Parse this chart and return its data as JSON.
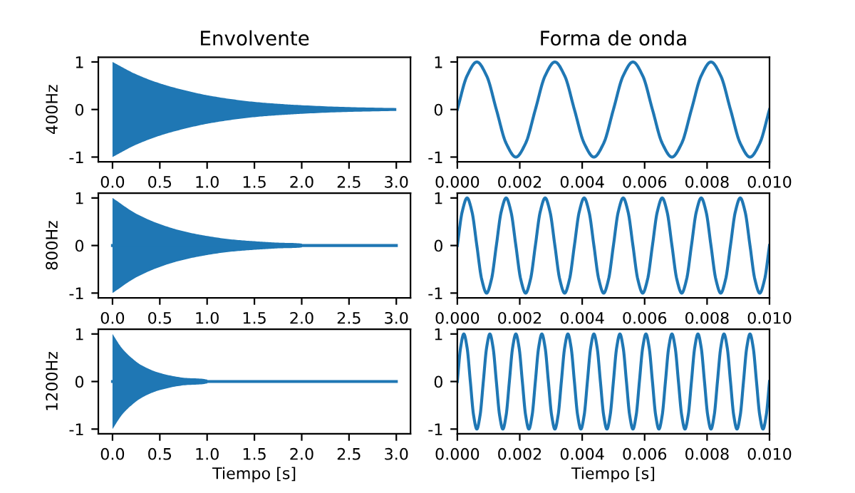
{
  "chart_data": [
    {
      "type": "line",
      "title": "Envolvente",
      "ylabel": "400Hz",
      "xlim": [
        -0.15,
        3.15
      ],
      "ylim": [
        -1.1,
        1.1
      ],
      "xticks": [
        {
          "value": 0,
          "label": "0.0"
        },
        {
          "value": 0.5,
          "label": "0.5"
        },
        {
          "value": 1,
          "label": "1.0"
        },
        {
          "value": 1.5,
          "label": "1.5"
        },
        {
          "value": 2,
          "label": "2.0"
        },
        {
          "value": 2.5,
          "label": "2.5"
        },
        {
          "value": 3,
          "label": "3.0"
        }
      ],
      "yticks": [
        -1,
        0,
        1
      ],
      "x": [
        0,
        0.25,
        0.5,
        0.75,
        1,
        1.25,
        1.5,
        1.75,
        2,
        2.5,
        3
      ],
      "series": [
        {
          "color": "#1f77b4",
          "values": [
            null,
            null,
            null,
            null,
            null,
            null,
            null,
            null,
            null,
            null,
            null
          ],
          "upper": [
            1,
            0.74,
            0.55,
            0.41,
            0.3,
            0.22,
            0.16,
            0.12,
            0.09,
            0.05,
            0.03
          ],
          "lower": [
            -1,
            -0.74,
            -0.55,
            -0.41,
            -0.3,
            -0.22,
            -0.16,
            -0.12,
            -0.09,
            -0.05,
            -0.03
          ]
        }
      ]
    },
    {
      "type": "line",
      "title": "Forma de onda",
      "xlim": [
        0,
        0.01
      ],
      "ylim": [
        -1.1,
        1.1
      ],
      "xticks": [
        {
          "value": 0,
          "label": "0.000"
        },
        {
          "value": 0.002,
          "label": "0.002"
        },
        {
          "value": 0.004,
          "label": "0.004"
        },
        {
          "value": 0.006,
          "label": "0.006"
        },
        {
          "value": 0.008,
          "label": "0.008"
        },
        {
          "value": 0.01,
          "label": "0.010"
        }
      ],
      "yticks": [
        -1,
        0,
        1
      ],
      "x": [
        0,
        0.000313,
        0.000625,
        0.000938,
        0.00125,
        0.001563,
        0.001875,
        0.002188,
        0.0025,
        0.002813,
        0.003125,
        0.003438,
        0.00375,
        0.004063,
        0.004375,
        0.004688,
        0.005,
        0.005313,
        0.005625,
        0.005938,
        0.00625,
        0.006563,
        0.006875,
        0.007188,
        0.0075,
        0.007813,
        0.008125,
        0.008438,
        0.00875,
        0.009063,
        0.009375,
        0.009688,
        0.01
      ],
      "series": [
        {
          "color": "#1f77b4",
          "values": [
            0,
            0.71,
            1,
            0.71,
            0,
            -0.71,
            -1,
            -0.71,
            0,
            0.71,
            1,
            0.71,
            0,
            -0.71,
            -1,
            -0.71,
            0,
            0.71,
            1,
            0.71,
            0,
            -0.71,
            -1,
            -0.71,
            0,
            0.71,
            1,
            0.71,
            0,
            -0.71,
            -1,
            -0.71,
            0
          ]
        }
      ]
    },
    {
      "type": "line",
      "ylabel": "800Hz",
      "xlim": [
        -0.15,
        3.15
      ],
      "ylim": [
        -1.1,
        1.1
      ],
      "xticks": [
        {
          "value": 0,
          "label": "0.0"
        },
        {
          "value": 0.5,
          "label": "0.5"
        },
        {
          "value": 1,
          "label": "1.0"
        },
        {
          "value": 1.5,
          "label": "1.5"
        },
        {
          "value": 2,
          "label": "2.0"
        },
        {
          "value": 2.5,
          "label": "2.5"
        },
        {
          "value": 3,
          "label": "3.0"
        }
      ],
      "yticks": [
        -1,
        0,
        1
      ],
      "x": [
        0,
        0.25,
        0.5,
        0.75,
        1,
        1.25,
        1.5,
        1.75,
        2,
        2.01,
        3
      ],
      "series": [
        {
          "color": "#1f77b4",
          "values": [
            0,
            0,
            0,
            0,
            0,
            0,
            0,
            0,
            0,
            0,
            0
          ],
          "upper": [
            1,
            0.67,
            0.45,
            0.3,
            0.2,
            0.13,
            0.09,
            0.06,
            0.04,
            0,
            0
          ],
          "lower": [
            -1,
            -0.67,
            -0.45,
            -0.3,
            -0.2,
            -0.13,
            -0.09,
            -0.06,
            -0.04,
            0,
            0
          ]
        }
      ]
    },
    {
      "type": "line",
      "xlim": [
        0,
        0.01
      ],
      "ylim": [
        -1.1,
        1.1
      ],
      "xticks": [
        {
          "value": 0,
          "label": "0.000"
        },
        {
          "value": 0.002,
          "label": "0.002"
        },
        {
          "value": 0.004,
          "label": "0.004"
        },
        {
          "value": 0.006,
          "label": "0.006"
        },
        {
          "value": 0.008,
          "label": "0.008"
        },
        {
          "value": 0.01,
          "label": "0.010"
        }
      ],
      "yticks": [
        -1,
        0,
        1
      ],
      "x": [
        0,
        0.000156,
        0.000313,
        0.000469,
        0.000625,
        0.000781,
        0.000938,
        0.001094,
        0.00125,
        0.001406,
        0.001563,
        0.001719,
        0.001875,
        0.002031,
        0.002188,
        0.002344,
        0.0025,
        0.002656,
        0.002813,
        0.002969,
        0.003125,
        0.003281,
        0.003438,
        0.003594,
        0.00375,
        0.003906,
        0.004063,
        0.004219,
        0.004375,
        0.004531,
        0.004688,
        0.004844,
        0.005,
        0.005156,
        0.005313,
        0.005469,
        0.005625,
        0.005781,
        0.005938,
        0.006094,
        0.00625,
        0.006406,
        0.006563,
        0.006719,
        0.006875,
        0.007031,
        0.007188,
        0.007344,
        0.0075,
        0.007656,
        0.007813,
        0.007969,
        0.008125,
        0.008281,
        0.008438,
        0.008594,
        0.00875,
        0.008906,
        0.009063,
        0.009219,
        0.009375,
        0.009531,
        0.009688,
        0.009844,
        0.01
      ],
      "series": [
        {
          "color": "#1f77b4",
          "values": [
            0,
            0.71,
            1,
            0.71,
            0,
            -0.71,
            -1,
            -0.71,
            0,
            0.71,
            1,
            0.71,
            0,
            -0.71,
            -1,
            -0.71,
            0,
            0.71,
            1,
            0.71,
            0,
            -0.71,
            -1,
            -0.71,
            0,
            0.71,
            1,
            0.71,
            0,
            -0.71,
            -1,
            -0.71,
            0,
            0.71,
            1,
            0.71,
            0,
            -0.71,
            -1,
            -0.71,
            0,
            0.71,
            1,
            0.71,
            0,
            -0.71,
            -1,
            -0.71,
            0,
            0.71,
            1,
            0.71,
            0,
            -0.71,
            -1,
            -0.71,
            0,
            0.71,
            1,
            0.71,
            0,
            -0.71,
            -1,
            -0.71,
            0
          ]
        }
      ]
    },
    {
      "type": "line",
      "ylabel": "1200Hz",
      "xlabel": "Tiempo [s]",
      "xlim": [
        -0.15,
        3.15
      ],
      "ylim": [
        -1.1,
        1.1
      ],
      "xticks": [
        {
          "value": 0,
          "label": "0.0"
        },
        {
          "value": 0.5,
          "label": "0.5"
        },
        {
          "value": 1,
          "label": "1.0"
        },
        {
          "value": 1.5,
          "label": "1.5"
        },
        {
          "value": 2,
          "label": "2.0"
        },
        {
          "value": 2.5,
          "label": "2.5"
        },
        {
          "value": 3,
          "label": "3.0"
        }
      ],
      "yticks": [
        -1,
        0,
        1
      ],
      "x": [
        0,
        0.1,
        0.2,
        0.3,
        0.5,
        0.75,
        1,
        1.01,
        3
      ],
      "series": [
        {
          "color": "#1f77b4",
          "values": [
            0,
            0,
            0,
            0,
            0,
            0,
            0,
            0,
            0
          ],
          "upper": [
            1,
            0.7,
            0.5,
            0.35,
            0.18,
            0.08,
            0.04,
            0,
            0
          ],
          "lower": [
            -1,
            -0.7,
            -0.5,
            -0.35,
            -0.18,
            -0.08,
            -0.04,
            0,
            0
          ]
        }
      ]
    },
    {
      "type": "line",
      "xlabel": "Tiempo [s]",
      "xlim": [
        0,
        0.01
      ],
      "ylim": [
        -1.1,
        1.1
      ],
      "xticks": [
        {
          "value": 0,
          "label": "0.000"
        },
        {
          "value": 0.002,
          "label": "0.002"
        },
        {
          "value": 0.004,
          "label": "0.004"
        },
        {
          "value": 0.006,
          "label": "0.006"
        },
        {
          "value": 0.008,
          "label": "0.008"
        },
        {
          "value": 0.01,
          "label": "0.010"
        }
      ],
      "yticks": [
        -1,
        0,
        1
      ],
      "x": [
        0,
        0.000104,
        0.000208,
        0.000313,
        0.000417,
        0.000521,
        0.000625,
        0.000729,
        0.000833,
        0.000938,
        0.001042,
        0.001146,
        0.00125,
        0.001354,
        0.001458,
        0.001563,
        0.001667,
        0.001771,
        0.001875,
        0.001979,
        0.002083,
        0.002188,
        0.002292,
        0.002396,
        0.0025,
        0.002604,
        0.002708,
        0.002813,
        0.002917,
        0.003021,
        0.003125,
        0.003229,
        0.003333,
        0.003438,
        0.003542,
        0.003646,
        0.00375,
        0.003854,
        0.003958,
        0.004063,
        0.004167,
        0.004271,
        0.004375,
        0.004479,
        0.004583,
        0.004688,
        0.004792,
        0.004896,
        0.005,
        0.005104,
        0.005208,
        0.005313,
        0.005417,
        0.005521,
        0.005625,
        0.005729,
        0.005833,
        0.005938,
        0.006042,
        0.006146,
        0.00625,
        0.006354,
        0.006458,
        0.006563,
        0.006667,
        0.006771,
        0.006875,
        0.006979,
        0.007083,
        0.007188,
        0.007292,
        0.007396,
        0.0075,
        0.007604,
        0.007708,
        0.007813,
        0.007917,
        0.008021,
        0.008125,
        0.008229,
        0.008333,
        0.008438,
        0.008542,
        0.008646,
        0.00875,
        0.008854,
        0.008958,
        0.009063,
        0.009167,
        0.009271,
        0.009375,
        0.009479,
        0.009583,
        0.009688,
        0.009792,
        0.009896,
        0.01
      ],
      "series": [
        {
          "color": "#1f77b4",
          "values": [
            0,
            0.71,
            1,
            0.71,
            0,
            -0.71,
            -1,
            -0.71,
            0,
            0.71,
            1,
            0.71,
            0,
            -0.71,
            -1,
            -0.71,
            0,
            0.71,
            1,
            0.71,
            0,
            -0.71,
            -1,
            -0.71,
            0,
            0.71,
            1,
            0.71,
            0,
            -0.71,
            -1,
            -0.71,
            0,
            0.71,
            1,
            0.71,
            0,
            -0.71,
            -1,
            -0.71,
            0,
            0.71,
            1,
            0.71,
            0,
            -0.71,
            -1,
            -0.71,
            0,
            0.71,
            1,
            0.71,
            0,
            -0.71,
            -1,
            -0.71,
            0,
            0.71,
            1,
            0.71,
            0,
            -0.71,
            -1,
            -0.71,
            0,
            0.71,
            1,
            0.71,
            0,
            -0.71,
            -1,
            -0.71,
            0,
            0.71,
            1,
            0.71,
            0,
            -0.71,
            -1,
            -0.71,
            0,
            0.71,
            1,
            0.71,
            0,
            -0.71,
            -1,
            -0.71,
            0,
            0.71,
            1,
            0.71,
            0,
            -0.71,
            -1,
            -0.71,
            0
          ]
        }
      ]
    }
  ]
}
